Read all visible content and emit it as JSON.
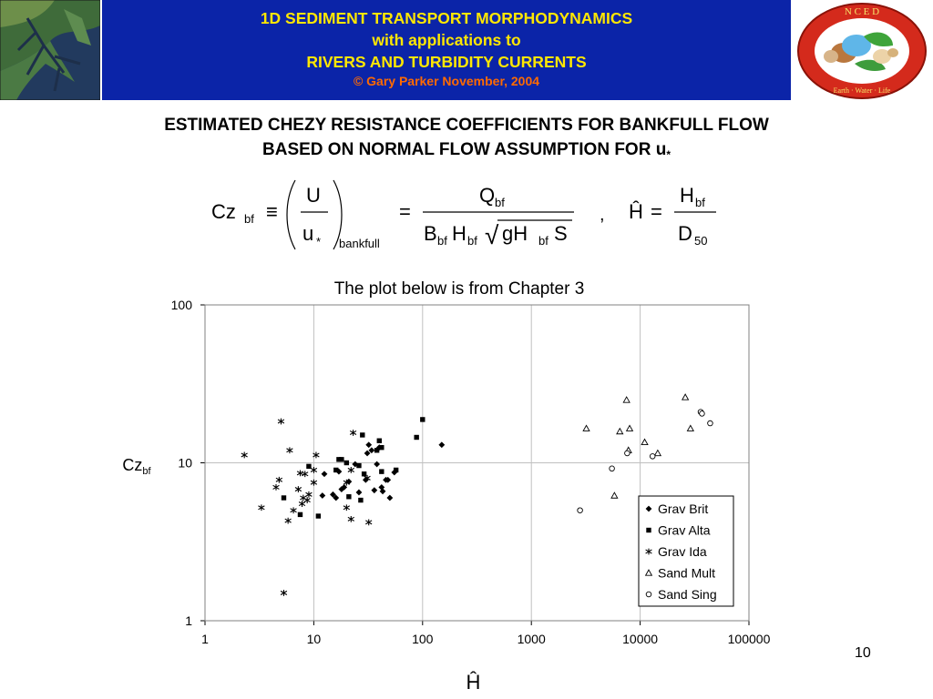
{
  "banner": {
    "line1": "1D SEDIMENT TRANSPORT MORPHODYNAMICS",
    "line2": "with applications to",
    "line3": "RIVERS AND TURBIDITY CURRENTS",
    "copyright": "© Gary Parker November, 2004"
  },
  "logo": {
    "ring_text_top": "N C E D",
    "ring_text_bottom": "Earth · Water · Life"
  },
  "heading": {
    "line1": "ESTIMATED CHEZY RESISTANCE COEFFICIENTS FOR BANKFULL FLOW",
    "line2": "BASED ON NORMAL FLOW ASSUMPTION FOR u",
    "line2_sub": "*"
  },
  "equation": {
    "cz": "Cz",
    "cz_sub": "bf",
    "equiv": "≡",
    "U": "U",
    "u": "u",
    "u_sub": "*",
    "bankfull": "bankfull",
    "eq": "=",
    "Q": "Q",
    "Q_sub": "bf",
    "B": "B",
    "B_sub": "bf",
    "H": "H",
    "H_sub": "bf",
    "sqrt": "√",
    "gH": "gH",
    "gH_sub": "bf",
    "S": "S",
    "comma": ",",
    "Hhat": "Ĥ",
    "eq2": "=",
    "Hn": "H",
    "Hn_sub": "bf",
    "D": "D",
    "D_sub": "50"
  },
  "note": "The plot below is from Chapter 3",
  "page_number": "10",
  "chart_data": {
    "type": "scatter",
    "xscale": "log",
    "yscale": "log",
    "xlim": [
      1,
      100000
    ],
    "ylim": [
      1,
      100
    ],
    "x_ticks": [
      "1",
      "10",
      "100",
      "1000",
      "10000",
      "100000"
    ],
    "y_ticks": [
      "1",
      "10",
      "100"
    ],
    "xlabel": "Ĥ",
    "ylabel": "Cz",
    "ylabel_sub": "bf",
    "grid": "major",
    "legend_position": "right",
    "colors": {
      "plot_bg": "#ffffff",
      "grid": "#c0c0c0",
      "border": "#808080",
      "marker": "#000000"
    },
    "series": [
      {
        "name": "Grav Brit",
        "marker": "diamond",
        "points": [
          [
            12.5,
            8.5
          ],
          [
            15,
            6.3
          ],
          [
            17,
            8.8
          ],
          [
            18,
            6.8
          ],
          [
            21,
            7.6
          ],
          [
            24,
            9.8
          ],
          [
            26,
            6.5
          ],
          [
            30,
            7.8
          ],
          [
            31,
            11.5
          ],
          [
            32,
            13
          ],
          [
            34,
            12
          ],
          [
            36,
            6.7
          ],
          [
            38,
            9.8
          ],
          [
            40,
            12.5
          ],
          [
            42,
            7
          ],
          [
            43,
            6.6
          ],
          [
            46,
            7.8
          ],
          [
            48,
            7.8
          ],
          [
            50,
            6
          ],
          [
            55,
            8.7
          ],
          [
            150,
            13
          ],
          [
            12,
            6.2
          ],
          [
            16,
            6
          ],
          [
            19,
            7
          ]
        ]
      },
      {
        "name": "Grav Alta",
        "marker": "square",
        "points": [
          [
            5.3,
            6
          ],
          [
            7.5,
            4.7
          ],
          [
            9,
            9.5
          ],
          [
            11,
            4.6
          ],
          [
            16,
            9
          ],
          [
            17,
            10.5
          ],
          [
            18,
            10.5
          ],
          [
            20,
            10
          ],
          [
            21,
            6.1
          ],
          [
            26,
            9.6
          ],
          [
            28,
            15
          ],
          [
            29,
            8.5
          ],
          [
            38,
            12
          ],
          [
            40,
            13.8
          ],
          [
            42,
            8.8
          ],
          [
            42,
            12.5
          ],
          [
            57,
            9
          ],
          [
            88,
            14.5
          ],
          [
            100,
            18.8
          ],
          [
            27,
            5.8
          ]
        ]
      },
      {
        "name": "Grav Ida",
        "marker": "asterisk",
        "points": [
          [
            2.3,
            11.2
          ],
          [
            3.3,
            5.2
          ],
          [
            4.5,
            7
          ],
          [
            4.8,
            7.8
          ],
          [
            5,
            18.3
          ],
          [
            5.3,
            1.5
          ],
          [
            5.8,
            4.3
          ],
          [
            6,
            12
          ],
          [
            6.5,
            5
          ],
          [
            7.2,
            6.8
          ],
          [
            7.5,
            8.6
          ],
          [
            7.8,
            5.5
          ],
          [
            8,
            6
          ],
          [
            8.3,
            8.5
          ],
          [
            8.7,
            5.8
          ],
          [
            9,
            6.3
          ],
          [
            10,
            9
          ],
          [
            10.5,
            11.2
          ],
          [
            10,
            7.5
          ],
          [
            20,
            7.5
          ],
          [
            20,
            5.2
          ],
          [
            22,
            4.4
          ],
          [
            22,
            9
          ],
          [
            23,
            15.5
          ],
          [
            31,
            8
          ],
          [
            32,
            4.2
          ]
        ]
      },
      {
        "name": "Sand Mult",
        "marker": "triangle",
        "points": [
          [
            3200,
            16.5
          ],
          [
            5800,
            6.2
          ],
          [
            6500,
            15.8
          ],
          [
            7500,
            25
          ],
          [
            8000,
            16.5
          ],
          [
            7800,
            12
          ],
          [
            11000,
            13.5
          ],
          [
            14500,
            11.5
          ],
          [
            26000,
            26
          ],
          [
            29000,
            16.5
          ]
        ]
      },
      {
        "name": "Sand Sing",
        "marker": "circle",
        "points": [
          [
            2800,
            5
          ],
          [
            5500,
            9.2
          ],
          [
            7600,
            11.5
          ],
          [
            13000,
            11
          ],
          [
            36000,
            21
          ],
          [
            37000,
            20.5
          ],
          [
            44000,
            17.8
          ]
        ]
      }
    ]
  }
}
